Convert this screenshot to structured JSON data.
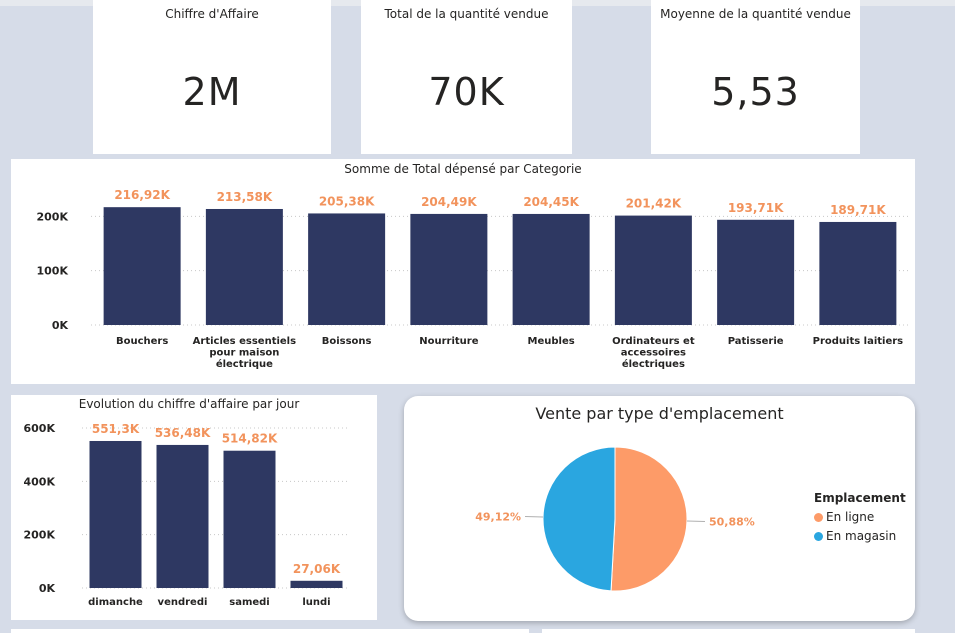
{
  "kpis": [
    {
      "title": "Chiffre d'Affaire",
      "value": "2M"
    },
    {
      "title": "Total de la quantité vendue",
      "value": "70K"
    },
    {
      "title": "Moyenne de la quantité vendue",
      "value": "5,53"
    }
  ],
  "colors": {
    "bar": "#2e3862",
    "label": "#f2935c",
    "en_ligne": "#fd9b68",
    "en_magasin": "#2aa6e0",
    "card": "#ffffff",
    "background": "#d6dce8"
  },
  "chart_data": [
    {
      "type": "bar",
      "title": "Somme de Total dépensé par Categorie",
      "categories": [
        [
          "Bouchers"
        ],
        [
          "Articles essentiels",
          "pour maison",
          "électrique"
        ],
        [
          "Boissons"
        ],
        [
          "Nourriture"
        ],
        [
          "Meubles"
        ],
        [
          "Ordinateurs et",
          "accessoires",
          "électriques"
        ],
        [
          "Patisserie"
        ],
        [
          "Produits laitiers"
        ]
      ],
      "values": [
        216.92,
        213.58,
        205.38,
        204.49,
        204.45,
        201.42,
        193.71,
        189.71
      ],
      "value_labels": [
        "216,92K",
        "213,58K",
        "205,38K",
        "204,49K",
        "204,45K",
        "201,42K",
        "193,71K",
        "189,71K"
      ],
      "ylim": [
        0,
        220
      ],
      "yticks": [
        0,
        100,
        200
      ],
      "ytick_labels": [
        "0K",
        "100K",
        "200K"
      ],
      "grid": true
    },
    {
      "type": "bar",
      "title": "Evolution du chiffre d'affaire par jour",
      "categories": [
        [
          "dimanche"
        ],
        [
          "vendredi"
        ],
        [
          "samedi"
        ],
        [
          "lundi"
        ]
      ],
      "values": [
        551.3,
        536.48,
        514.82,
        27.06
      ],
      "value_labels": [
        "551,3K",
        "536,48K",
        "514,82K",
        "27,06K"
      ],
      "ylim": [
        0,
        600
      ],
      "yticks": [
        0,
        200,
        400,
        600
      ],
      "ytick_labels": [
        "0K",
        "200K",
        "400K",
        "600K"
      ],
      "grid": true
    },
    {
      "type": "pie",
      "title": "Vente par type d'emplacement",
      "legend_title": "Emplacement",
      "legend_placement": "right",
      "slices": [
        {
          "name": "En ligne",
          "value": 50.88,
          "label": "50,88%"
        },
        {
          "name": "En magasin",
          "value": 49.12,
          "label": "49,12%"
        }
      ]
    }
  ]
}
